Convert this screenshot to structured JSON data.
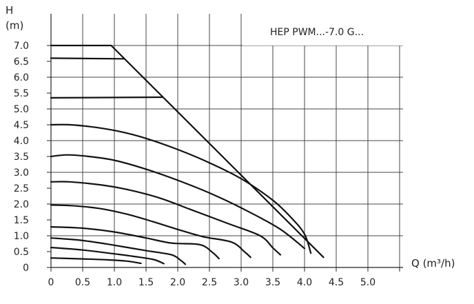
{
  "chart_data": {
    "type": "line",
    "model_label": "HEP PWM...-7.0 G...",
    "y_axis": {
      "label_top": "H",
      "label_unit": "(m)",
      "ylim": [
        0,
        7.0
      ],
      "ticks": [
        "0",
        "0.5",
        "1.0",
        "1.5",
        "2.0",
        "2.5",
        "3.0",
        "3.5",
        "4.0",
        "4.5",
        "5.0",
        "5.5",
        "6.0",
        "6.5",
        "7.0"
      ]
    },
    "x_axis": {
      "label": "Q (m³/h)",
      "xlim": [
        0,
        5.5
      ],
      "ticks": [
        "0",
        "0.5",
        "1.0",
        "1.5",
        "2.0",
        "2.5",
        "3.0",
        "3.5",
        "4.0",
        "4.5",
        "5.0"
      ]
    },
    "grid": true,
    "colors": {
      "curve": "#111111",
      "grid": "#444444"
    },
    "series": [
      {
        "points": [
          [
            0,
            7.0
          ],
          [
            0.95,
            7.0
          ],
          [
            4.3,
            0.32
          ]
        ]
      },
      {
        "points": [
          [
            0,
            6.6
          ],
          [
            1.15,
            6.58
          ]
        ]
      },
      {
        "points": [
          [
            0,
            5.35
          ],
          [
            1.75,
            5.37
          ]
        ]
      },
      {
        "points": [
          [
            0,
            4.5
          ],
          [
            0.3,
            4.5
          ],
          [
            0.7,
            4.42
          ],
          [
            1.1,
            4.28
          ],
          [
            1.5,
            4.07
          ],
          [
            2.0,
            3.72
          ],
          [
            2.5,
            3.3
          ],
          [
            3.0,
            2.8
          ],
          [
            3.5,
            2.12
          ],
          [
            3.8,
            1.55
          ],
          [
            4.0,
            1.05
          ],
          [
            4.1,
            0.45
          ]
        ]
      },
      {
        "points": [
          [
            0,
            3.5
          ],
          [
            0.25,
            3.55
          ],
          [
            0.6,
            3.5
          ],
          [
            1.0,
            3.38
          ],
          [
            1.5,
            3.1
          ],
          [
            2.0,
            2.75
          ],
          [
            2.5,
            2.35
          ],
          [
            3.0,
            1.88
          ],
          [
            3.6,
            1.23
          ],
          [
            4.0,
            0.6
          ]
        ]
      },
      {
        "points": [
          [
            0,
            2.7
          ],
          [
            0.3,
            2.7
          ],
          [
            0.8,
            2.6
          ],
          [
            1.2,
            2.46
          ],
          [
            1.7,
            2.2
          ],
          [
            2.2,
            1.83
          ],
          [
            2.8,
            1.38
          ],
          [
            3.3,
            1.0
          ],
          [
            3.5,
            0.62
          ],
          [
            3.62,
            0.4
          ]
        ]
      },
      {
        "points": [
          [
            0,
            1.97
          ],
          [
            0.4,
            1.94
          ],
          [
            0.8,
            1.85
          ],
          [
            1.2,
            1.68
          ],
          [
            1.6,
            1.45
          ],
          [
            2.0,
            1.2
          ],
          [
            2.4,
            0.97
          ],
          [
            2.85,
            0.8
          ],
          [
            3.05,
            0.5
          ],
          [
            3.15,
            0.32
          ]
        ]
      },
      {
        "points": [
          [
            0,
            1.28
          ],
          [
            0.5,
            1.24
          ],
          [
            1.0,
            1.12
          ],
          [
            1.5,
            0.93
          ],
          [
            1.9,
            0.77
          ],
          [
            2.35,
            0.72
          ],
          [
            2.55,
            0.47
          ],
          [
            2.65,
            0.28
          ]
        ]
      },
      {
        "points": [
          [
            0,
            0.93
          ],
          [
            0.5,
            0.85
          ],
          [
            1.0,
            0.7
          ],
          [
            1.5,
            0.53
          ],
          [
            1.9,
            0.4
          ],
          [
            2.05,
            0.22
          ],
          [
            2.12,
            0.1
          ]
        ]
      },
      {
        "points": [
          [
            0,
            0.63
          ],
          [
            0.5,
            0.55
          ],
          [
            1.0,
            0.43
          ],
          [
            1.3,
            0.35
          ],
          [
            1.62,
            0.25
          ],
          [
            1.78,
            0.12
          ]
        ]
      },
      {
        "points": [
          [
            0,
            0.3
          ],
          [
            0.5,
            0.27
          ],
          [
            0.9,
            0.24
          ],
          [
            1.2,
            0.2
          ],
          [
            1.42,
            0.13
          ]
        ]
      }
    ]
  }
}
